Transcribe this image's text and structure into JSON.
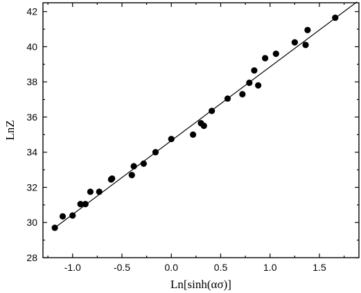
{
  "chart_data": {
    "type": "scatter",
    "title": "",
    "xlabel": "Ln[sinh(ασ)]",
    "ylabel": "LnZ",
    "xlim": [
      -1.3,
      1.9
    ],
    "ylim": [
      28,
      42.5
    ],
    "x_ticks": [
      -1.0,
      -0.5,
      0.0,
      0.5,
      1.0,
      1.5
    ],
    "x_tick_labels": [
      "-1.0",
      "-0.5",
      "0.0",
      "0.5",
      "1.0",
      "1.5"
    ],
    "y_ticks": [
      28,
      30,
      32,
      34,
      36,
      38,
      40,
      42
    ],
    "y_tick_labels": [
      "28",
      "30",
      "32",
      "34",
      "36",
      "38",
      "40",
      "42"
    ],
    "grid": false,
    "series": [
      {
        "points": [
          {
            "x": -1.18,
            "y": 29.7
          },
          {
            "x": -1.1,
            "y": 30.35
          },
          {
            "x": -1.0,
            "y": 30.4
          },
          {
            "x": -0.92,
            "y": 31.05
          },
          {
            "x": -0.87,
            "y": 31.05
          },
          {
            "x": -0.82,
            "y": 31.75
          },
          {
            "x": -0.73,
            "y": 31.75
          },
          {
            "x": -0.61,
            "y": 32.45
          },
          {
            "x": -0.6,
            "y": 32.5
          },
          {
            "x": -0.4,
            "y": 32.7
          },
          {
            "x": -0.38,
            "y": 33.2
          },
          {
            "x": -0.28,
            "y": 33.35
          },
          {
            "x": -0.16,
            "y": 34.0
          },
          {
            "x": 0.0,
            "y": 34.75
          },
          {
            "x": 0.22,
            "y": 35.0
          },
          {
            "x": 0.3,
            "y": 35.65
          },
          {
            "x": 0.33,
            "y": 35.5
          },
          {
            "x": 0.41,
            "y": 36.35
          },
          {
            "x": 0.57,
            "y": 37.05
          },
          {
            "x": 0.72,
            "y": 37.3
          },
          {
            "x": 0.79,
            "y": 37.95
          },
          {
            "x": 0.84,
            "y": 38.65
          },
          {
            "x": 0.88,
            "y": 37.8
          },
          {
            "x": 0.95,
            "y": 39.35
          },
          {
            "x": 1.06,
            "y": 39.6
          },
          {
            "x": 1.25,
            "y": 40.25
          },
          {
            "x": 1.36,
            "y": 40.1
          },
          {
            "x": 1.38,
            "y": 40.95
          },
          {
            "x": 1.66,
            "y": 41.65
          }
        ],
        "color": "#000000"
      }
    ],
    "fit_line": {
      "x": [
        -1.2,
        1.88
      ],
      "y": [
        29.62,
        42.55
      ],
      "color": "#000000"
    }
  }
}
